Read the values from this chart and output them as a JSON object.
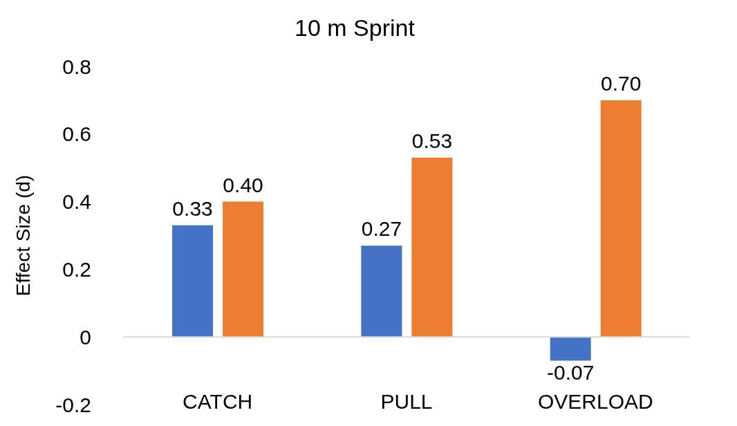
{
  "chart_data": {
    "type": "bar",
    "title": "10 m Sprint",
    "ylabel": "Effect Size (d)",
    "categories": [
      "CATCH",
      "PULL",
      "OVERLOAD"
    ],
    "series": [
      {
        "color": "#4472c4",
        "values": [
          0.33,
          0.27,
          -0.07
        ],
        "value_labels": [
          "0.33",
          "0.27",
          "-0.07"
        ]
      },
      {
        "color": "#ed7d31",
        "values": [
          0.4,
          0.53,
          0.7
        ],
        "value_labels": [
          "0.40",
          "0.53",
          "0.70"
        ]
      }
    ],
    "ylim": [
      -0.2,
      0.8
    ],
    "yticks": [
      -0.2,
      0,
      0.2,
      0.4,
      0.6,
      0.8
    ],
    "grid": false
  }
}
